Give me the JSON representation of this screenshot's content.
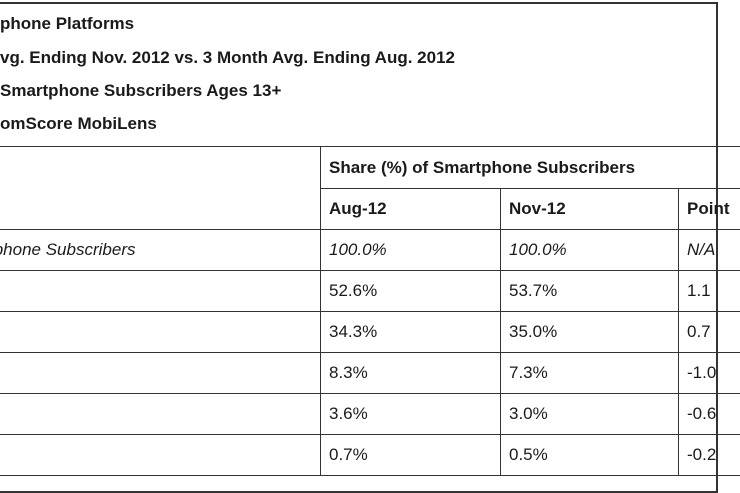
{
  "header": {
    "line1": "phone Platforms",
    "line2": "vg. Ending Nov. 2012 vs. 3 Month Avg. Ending Aug. 2012",
    "line3": "Smartphone Subscribers Ages 13+",
    "line4": "omScore MobiLens"
  },
  "table": {
    "group_header": "Share (%) of Smartphone Subscribers",
    "columns": [
      "Aug-12",
      "Nov-12",
      "Point"
    ],
    "rows": [
      {
        "label": "tphone Subscribers",
        "aug": "100.0%",
        "nov": "100.0%",
        "point": "N/A"
      },
      {
        "label": "",
        "aug": "52.6%",
        "nov": "53.7%",
        "point": "1.1"
      },
      {
        "label": "",
        "aug": "34.3%",
        "nov": "35.0%",
        "point": "0.7"
      },
      {
        "label": "",
        "aug": "8.3%",
        "nov": "7.3%",
        "point": "-1.0"
      },
      {
        "label": "",
        "aug": "3.6%",
        "nov": "3.0%",
        "point": "-0.6"
      },
      {
        "label": "",
        "aug": "0.7%",
        "nov": "0.5%",
        "point": "-0.2"
      }
    ]
  }
}
